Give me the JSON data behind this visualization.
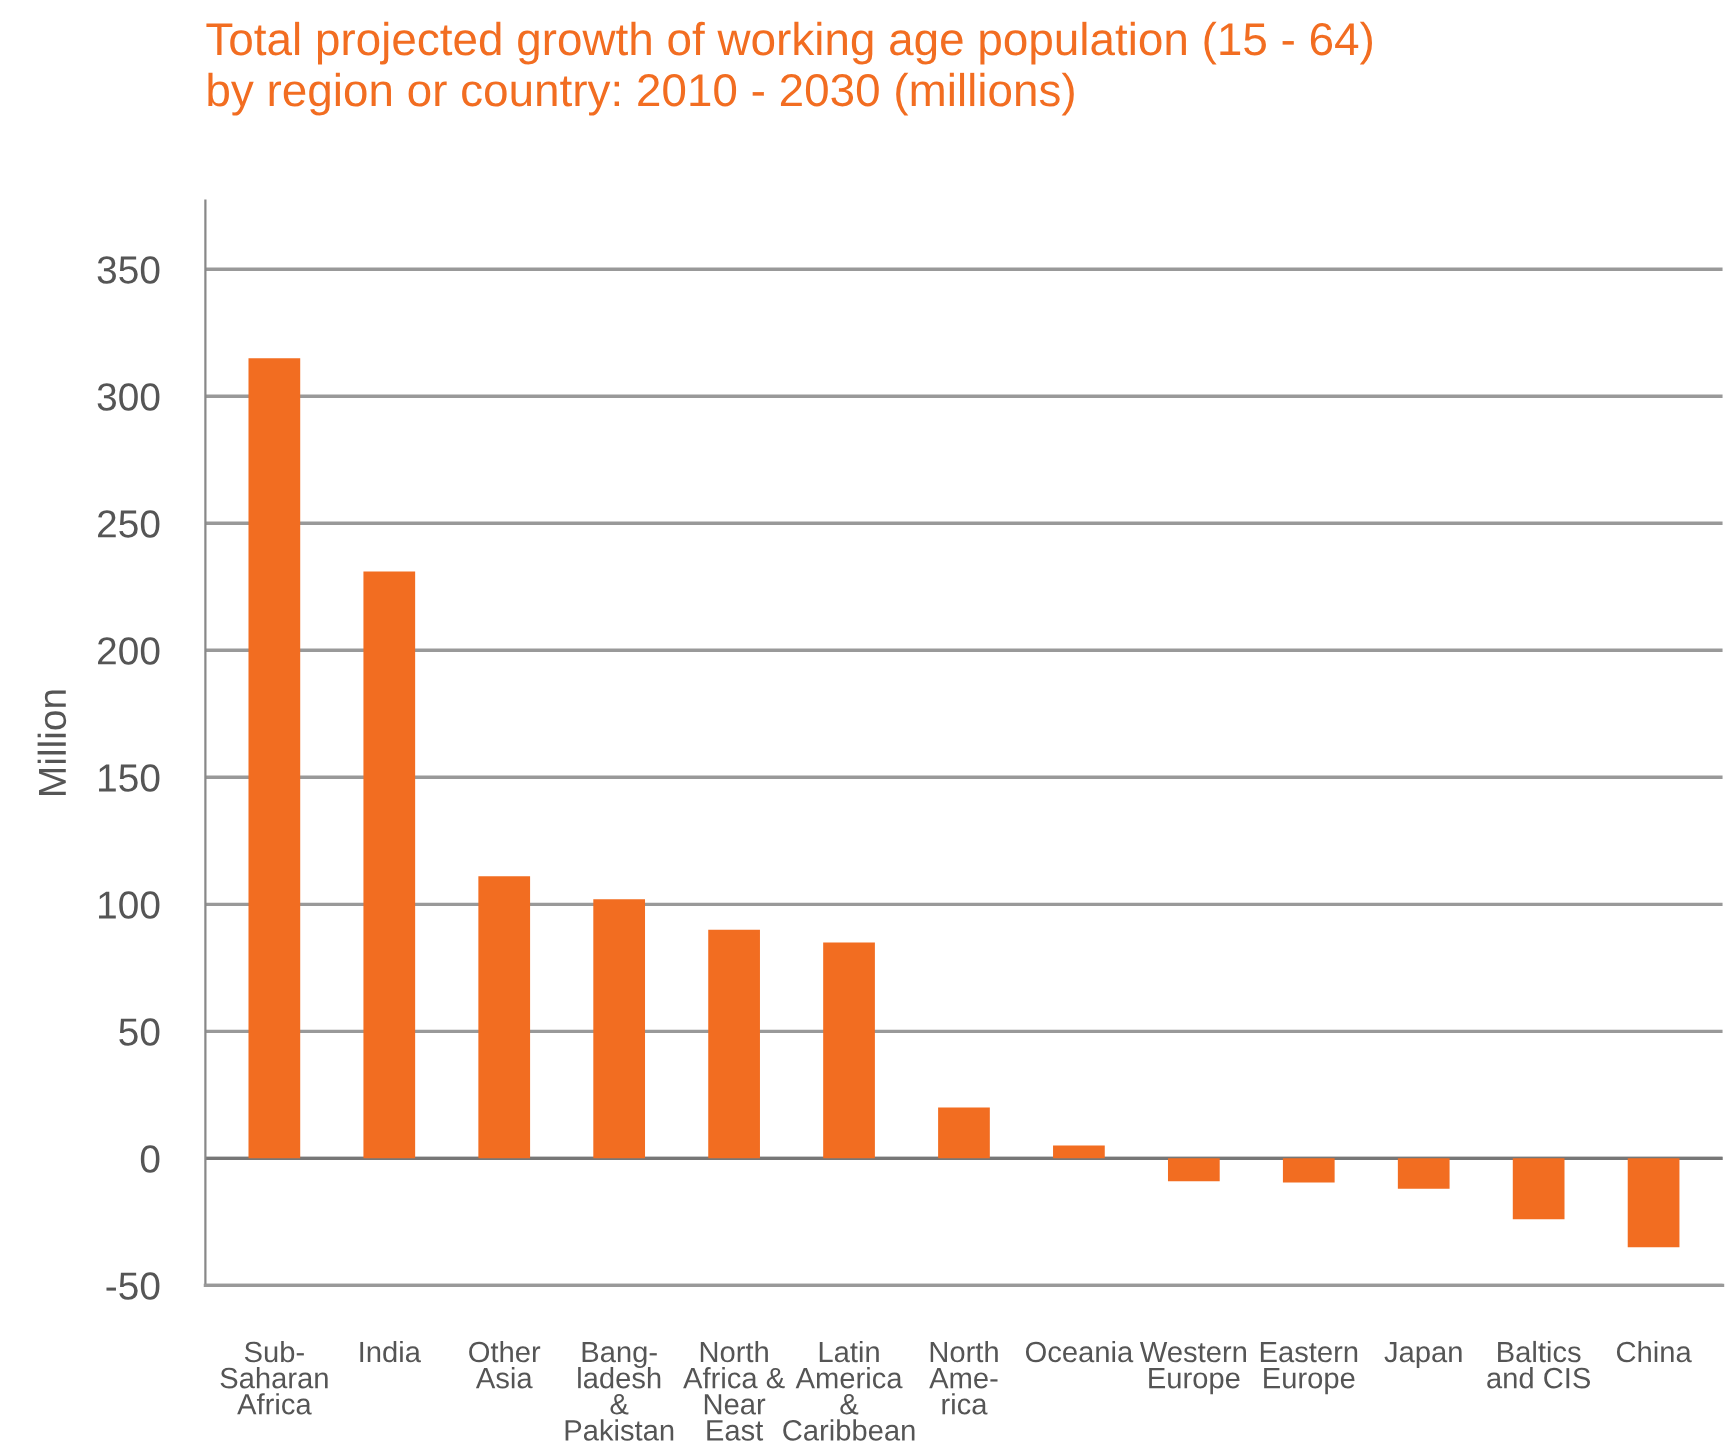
{
  "chart_data": {
    "type": "bar",
    "title": "Total projected growth of working age population (15 - 64)\nby region or country: 2010 - 2030 (millions)",
    "ylabel": "Million",
    "categories": [
      "Sub-\nSaharan\nAfrica",
      "India",
      "Other\nAsia",
      "Bang-\nladesh\n&\nPakistan",
      "North\nAfrica &\nNear\nEast",
      "Latin\nAmerica\n&\nCaribbean",
      "North\nAme-\nrica",
      "Oceania",
      "Western\nEurope",
      "Eastern\nEurope",
      "Japan",
      "Baltics\nand CIS",
      "China"
    ],
    "values": [
      315,
      231,
      111,
      102,
      90,
      85,
      20,
      5,
      -9,
      -9.5,
      -12,
      -24,
      -35
    ],
    "color": "#f26d21",
    "ylim": [
      -50,
      377
    ],
    "yticks": [
      -50,
      0,
      50,
      100,
      150,
      200,
      250,
      300,
      350
    ],
    "grid": "y"
  }
}
